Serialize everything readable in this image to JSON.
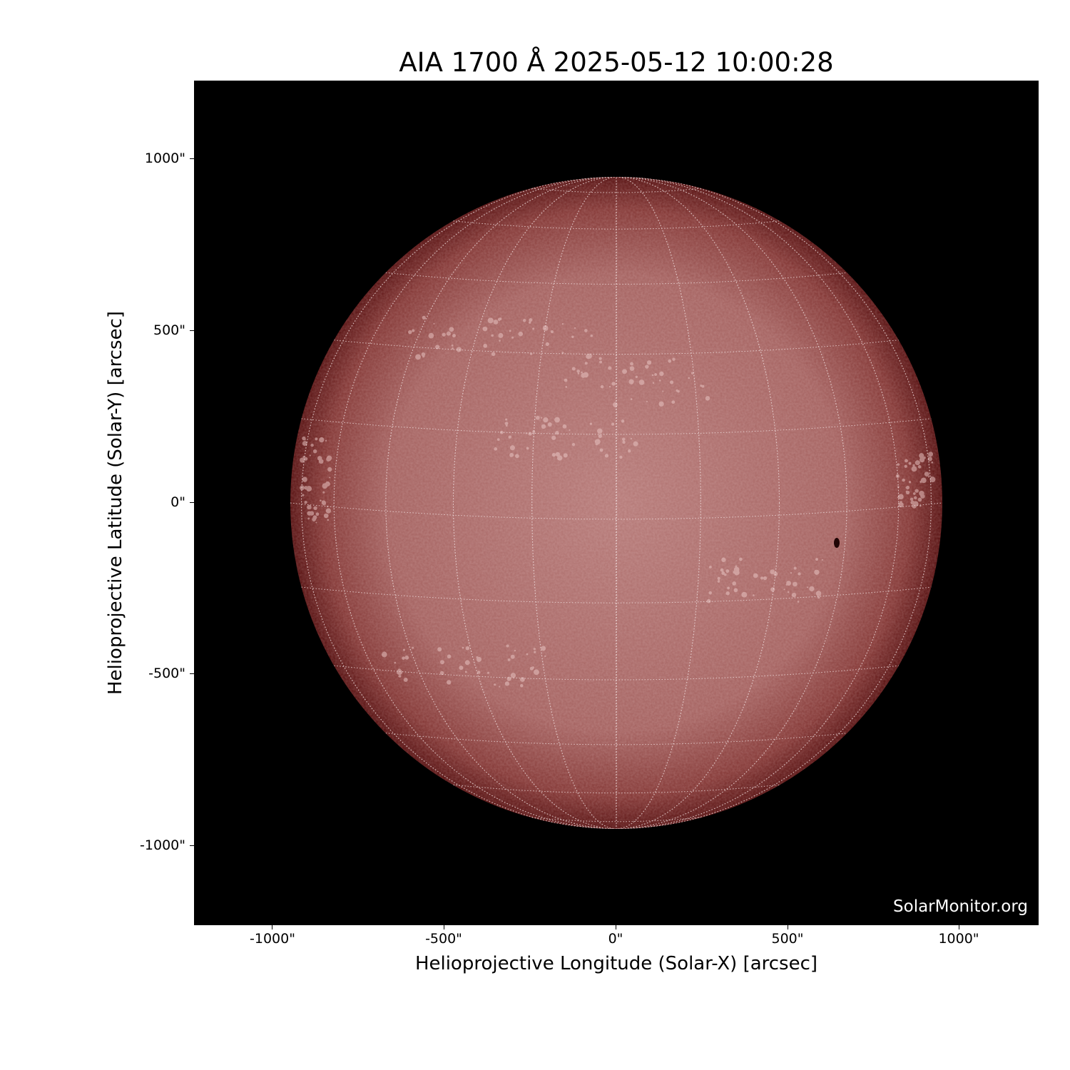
{
  "title": "AIA 1700 Å 2025-05-12 10:00:28",
  "xlabel": "Helioprojective Longitude (Solar-X) [arcsec]",
  "ylabel": "Helioprojective Latitude (Solar-Y) [arcsec]",
  "x_ticks": [
    "-1000\"",
    "-500\"",
    "0\"",
    "500\"",
    "1000\""
  ],
  "y_ticks": [
    "1000\"",
    "500\"",
    "0\"",
    "-500\"",
    "-1000\""
  ],
  "watermark": "SolarMonitor.org",
  "colors": {
    "disk_center": "#b97a78",
    "disk_limb": "#5a1414",
    "background": "#000000"
  }
}
